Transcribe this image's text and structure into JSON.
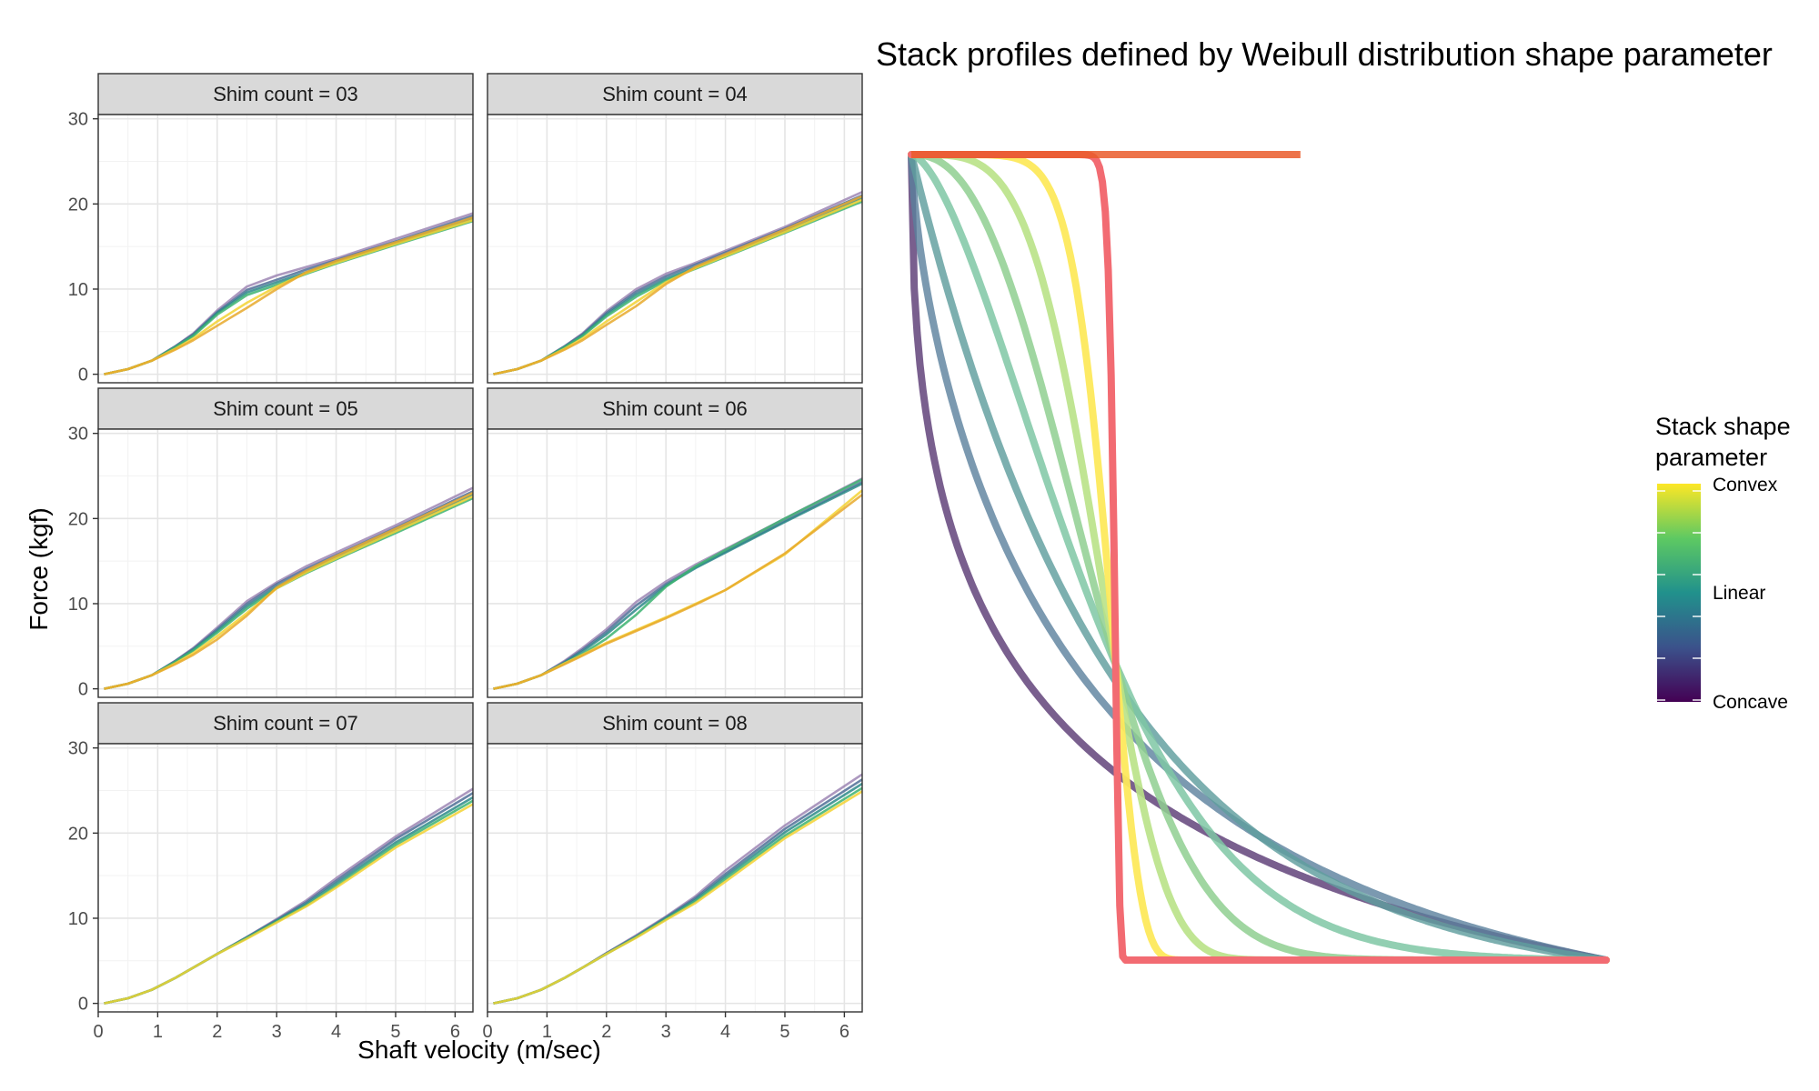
{
  "chart_data": [
    {
      "type": "line",
      "panel": "facets",
      "xlabel": "Shaft velocity (m/sec)",
      "ylabel": "Force (kgf)",
      "xlim": [
        0,
        6.3
      ],
      "ylim": [
        -1,
        30.5
      ],
      "x_ticks": [
        "0",
        "1",
        "2",
        "3",
        "4",
        "5",
        "6"
      ],
      "y_ticks": [
        "0",
        "10",
        "20",
        "30"
      ],
      "grid": true,
      "facet_label_prefix": "Shim count =  ",
      "facets": [
        {
          "label": "03",
          "x": [
            0.1,
            0.5,
            0.9,
            1.3,
            1.6,
            2.0,
            2.5,
            3.0,
            3.5,
            4.0,
            5.0,
            6.3
          ],
          "series": [
            {
              "values": [
                0.0,
                0.6,
                1.6,
                3.3,
                4.8,
                7.5,
                10.3,
                11.6,
                12.6,
                13.6,
                15.9,
                18.9
              ]
            },
            {
              "values": [
                0.0,
                0.6,
                1.6,
                3.3,
                4.7,
                7.3,
                9.9,
                11.1,
                12.3,
                13.4,
                15.6,
                18.6
              ]
            },
            {
              "values": [
                0.0,
                0.6,
                1.6,
                3.2,
                4.6,
                7.2,
                9.6,
                10.8,
                12.0,
                13.2,
                15.4,
                18.3
              ]
            },
            {
              "values": [
                0.0,
                0.6,
                1.6,
                3.2,
                4.5,
                7.0,
                9.3,
                10.5,
                11.8,
                13.0,
                15.2,
                18.0
              ]
            },
            {
              "values": [
                0.0,
                0.6,
                1.6,
                3.0,
                4.2,
                6.2,
                8.4,
                10.3,
                11.9,
                13.1,
                15.3,
                18.1
              ]
            },
            {
              "values": [
                0.0,
                0.6,
                1.6,
                2.9,
                4.0,
                5.7,
                7.8,
                10.0,
                12.0,
                13.3,
                15.5,
                18.4
              ]
            }
          ]
        },
        {
          "label": "04",
          "x": [
            0.1,
            0.5,
            0.9,
            1.3,
            1.6,
            2.0,
            2.5,
            3.0,
            3.5,
            4.0,
            5.0,
            6.3
          ],
          "series": [
            {
              "values": [
                0.0,
                0.6,
                1.6,
                3.3,
                4.8,
                7.4,
                10.0,
                11.8,
                13.1,
                14.5,
                17.3,
                21.4
              ]
            },
            {
              "values": [
                0.0,
                0.6,
                1.6,
                3.3,
                4.7,
                7.2,
                9.7,
                11.5,
                12.9,
                14.3,
                17.1,
                21.0
              ]
            },
            {
              "values": [
                0.0,
                0.6,
                1.6,
                3.2,
                4.6,
                7.0,
                9.4,
                11.2,
                12.6,
                14.0,
                16.8,
                20.7
              ]
            },
            {
              "values": [
                0.0,
                0.6,
                1.6,
                3.2,
                4.5,
                6.8,
                9.1,
                11.0,
                12.4,
                13.8,
                16.6,
                20.3
              ]
            },
            {
              "values": [
                0.0,
                0.6,
                1.6,
                3.0,
                4.2,
                6.2,
                8.5,
                10.8,
                12.5,
                13.9,
                16.7,
                20.5
              ]
            },
            {
              "values": [
                0.0,
                0.6,
                1.6,
                2.9,
                4.0,
                5.8,
                8.0,
                10.6,
                12.6,
                14.1,
                17.0,
                20.9
              ]
            }
          ]
        },
        {
          "label": "05",
          "x": [
            0.1,
            0.5,
            0.9,
            1.3,
            1.6,
            2.0,
            2.5,
            3.0,
            3.5,
            4.0,
            5.0,
            6.3
          ],
          "series": [
            {
              "values": [
                0.0,
                0.6,
                1.6,
                3.3,
                4.8,
                7.2,
                10.3,
                12.5,
                14.4,
                16.0,
                19.2,
                23.6
              ]
            },
            {
              "values": [
                0.0,
                0.6,
                1.6,
                3.3,
                4.7,
                7.0,
                10.0,
                12.3,
                14.1,
                15.7,
                18.9,
                23.2
              ]
            },
            {
              "values": [
                0.0,
                0.6,
                1.6,
                3.2,
                4.6,
                6.8,
                9.7,
                12.0,
                13.8,
                15.4,
                18.6,
                22.8
              ]
            },
            {
              "values": [
                0.0,
                0.6,
                1.6,
                3.2,
                4.5,
                6.6,
                9.4,
                11.8,
                13.6,
                15.2,
                18.3,
                22.4
              ]
            },
            {
              "values": [
                0.0,
                0.6,
                1.6,
                3.0,
                4.2,
                6.2,
                8.9,
                11.8,
                13.7,
                15.3,
                18.5,
                22.6
              ]
            },
            {
              "values": [
                0.0,
                0.6,
                1.6,
                2.9,
                4.0,
                5.8,
                8.6,
                11.9,
                13.9,
                15.6,
                18.8,
                23.0
              ]
            }
          ]
        },
        {
          "label": "06",
          "x": [
            0.1,
            0.5,
            0.9,
            1.3,
            1.6,
            2.0,
            2.5,
            3.0,
            3.5,
            4.0,
            5.0,
            6.3
          ],
          "series": [
            {
              "values": [
                0.0,
                0.6,
                1.6,
                3.3,
                4.8,
                7.0,
                10.2,
                12.6,
                14.6,
                16.4,
                20.0,
                24.7
              ]
            },
            {
              "values": [
                0.0,
                0.6,
                1.6,
                3.2,
                4.6,
                6.7,
                9.8,
                12.3,
                14.3,
                16.1,
                19.7,
                24.3
              ]
            },
            {
              "values": [
                0.0,
                0.6,
                1.6,
                3.1,
                4.4,
                6.4,
                9.3,
                12.1,
                14.2,
                16.0,
                19.6,
                24.1
              ]
            },
            {
              "values": [
                0.0,
                0.6,
                1.6,
                3.0,
                4.1,
                5.9,
                8.7,
                12.0,
                14.4,
                16.3,
                20.0,
                24.6
              ]
            },
            {
              "values": [
                0.0,
                0.6,
                1.6,
                3.0,
                4.0,
                5.4,
                6.9,
                8.4,
                10.0,
                11.6,
                15.8,
                23.3
              ]
            },
            {
              "values": [
                0.0,
                0.6,
                1.6,
                2.9,
                3.9,
                5.3,
                6.8,
                8.3,
                9.9,
                11.6,
                15.9,
                22.8
              ]
            }
          ]
        },
        {
          "label": "07",
          "x": [
            0.1,
            0.5,
            0.9,
            1.3,
            1.6,
            2.0,
            2.5,
            3.0,
            3.5,
            4.0,
            5.0,
            6.3
          ],
          "series": [
            {
              "values": [
                0.0,
                0.6,
                1.6,
                3.0,
                4.2,
                5.8,
                7.8,
                9.9,
                12.1,
                14.7,
                19.6,
                25.2
              ]
            },
            {
              "values": [
                0.0,
                0.6,
                1.6,
                3.0,
                4.2,
                5.8,
                7.8,
                9.8,
                11.9,
                14.4,
                19.3,
                24.7
              ]
            },
            {
              "values": [
                0.0,
                0.6,
                1.6,
                3.0,
                4.2,
                5.8,
                7.7,
                9.7,
                11.7,
                14.1,
                18.9,
                24.2
              ]
            },
            {
              "values": [
                0.0,
                0.6,
                1.6,
                3.0,
                4.2,
                5.8,
                7.7,
                9.6,
                11.5,
                13.8,
                18.6,
                23.8
              ]
            },
            {
              "values": [
                0.0,
                0.6,
                1.6,
                3.0,
                4.2,
                5.8,
                7.6,
                9.5,
                11.4,
                13.6,
                18.3,
                23.4
              ]
            }
          ]
        },
        {
          "label": "08",
          "x": [
            0.1,
            0.5,
            0.9,
            1.3,
            1.6,
            2.0,
            2.5,
            3.0,
            3.5,
            4.0,
            5.0,
            6.3
          ],
          "series": [
            {
              "values": [
                0.0,
                0.6,
                1.6,
                3.0,
                4.2,
                5.9,
                8.0,
                10.2,
                12.6,
                15.6,
                20.9,
                26.9
              ]
            },
            {
              "values": [
                0.0,
                0.6,
                1.6,
                3.0,
                4.2,
                5.9,
                7.9,
                10.1,
                12.4,
                15.2,
                20.5,
                26.3
              ]
            },
            {
              "values": [
                0.0,
                0.6,
                1.6,
                3.0,
                4.2,
                5.8,
                7.8,
                10.0,
                12.2,
                14.9,
                20.1,
                25.8
              ]
            },
            {
              "values": [
                0.0,
                0.6,
                1.6,
                3.0,
                4.2,
                5.8,
                7.8,
                9.9,
                12.0,
                14.6,
                19.7,
                25.3
              ]
            },
            {
              "values": [
                0.0,
                0.6,
                1.6,
                3.0,
                4.2,
                5.8,
                7.7,
                9.8,
                11.8,
                14.3,
                19.4,
                24.9
              ]
            }
          ]
        }
      ]
    },
    {
      "type": "line",
      "panel": "stack-profiles",
      "title": "Stack profiles defined by Weibull distribution shape parameter",
      "axes_visible": false,
      "x_range": [
        0,
        1
      ],
      "y_range": [
        0,
        1
      ],
      "series": [
        {
          "shape": 0.45,
          "color": "#5c3c75",
          "opacity": 0.82
        },
        {
          "shape": 0.7,
          "color": "#5a7f9c",
          "opacity": 0.8
        },
        {
          "shape": 1.0,
          "color": "#5f9e9e",
          "opacity": 0.82
        },
        {
          "shape": 1.6,
          "color": "#7fc7a4",
          "opacity": 0.85
        },
        {
          "shape": 2.4,
          "color": "#8fcf90",
          "opacity": 0.85
        },
        {
          "shape": 4.0,
          "color": "#b9e287",
          "opacity": 0.9
        },
        {
          "shape": 8.0,
          "color": "#fde95c",
          "opacity": 0.95
        },
        {
          "shape": 50.0,
          "color": "#f26b72",
          "opacity": 1.0
        }
      ],
      "legend": {
        "title_line1": "Stack shape",
        "title_line2": "parameter",
        "position": "right",
        "labels": [
          "Convex",
          "Linear",
          "Concave"
        ],
        "colorbar": [
          "#fde725",
          "#5ec962",
          "#21918c",
          "#3b528b",
          "#440154"
        ]
      }
    }
  ]
}
